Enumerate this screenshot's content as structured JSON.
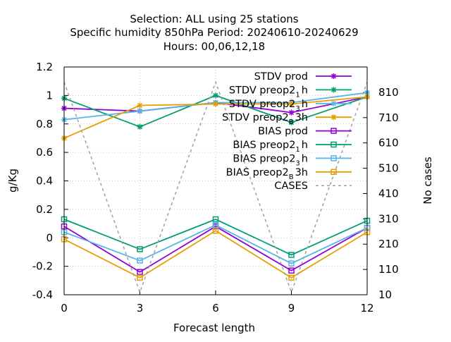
{
  "chart_data": {
    "type": "line",
    "title_lines": [
      "Selection: ALL using    25 stations",
      "Specific humidity 850hPa   Period: 20240610-20240629",
      "Hours:  00,06,12,18"
    ],
    "xlabel": "Forecast length",
    "ylabel": "g/Kg",
    "y2label": "No cases",
    "x": [
      0,
      3,
      6,
      9,
      12
    ],
    "xticks": [
      "0",
      "3",
      "6",
      "9",
      "12"
    ],
    "xlim": [
      0,
      12
    ],
    "ylim": [
      -0.4,
      1.2
    ],
    "yticks": [
      "-0.4",
      "-0.2",
      "0",
      "0.2",
      "0.4",
      "0.6",
      "0.8",
      "1",
      "1.2"
    ],
    "y2lim": [
      10,
      910
    ],
    "y2ticks": [
      "10",
      "110",
      "210",
      "310",
      "410",
      "510",
      "610",
      "710",
      "810"
    ],
    "grid": true,
    "legend_position": "top-right",
    "series": [
      {
        "name": "STDV prod",
        "name_main": "STDV prod",
        "name_sub": "",
        "name_tail": "",
        "axis": "y1",
        "color": "#9400d3",
        "marker": "star",
        "dash": false,
        "values": [
          0.91,
          0.89,
          0.95,
          0.88,
          0.99
        ]
      },
      {
        "name": "STDV preop2 1h",
        "name_main": "STDV preop2",
        "name_sub": "1",
        "name_tail": "h",
        "axis": "y1",
        "color": "#009e73",
        "marker": "star",
        "dash": false,
        "values": [
          0.98,
          0.78,
          1.0,
          0.81,
          0.99
        ]
      },
      {
        "name": "STDV preop2 3h",
        "name_main": "STDV preop2",
        "name_sub": "3",
        "name_tail": "h",
        "axis": "y1",
        "color": "#56b4e9",
        "marker": "star",
        "dash": false,
        "values": [
          0.83,
          0.89,
          0.95,
          0.95,
          1.02
        ]
      },
      {
        "name": "STDV preop2 B 3h",
        "name_main": "STDV preop2",
        "name_sub": "B",
        "name_tail": "3h",
        "axis": "y1",
        "color": "#e69f00",
        "marker": "star",
        "dash": false,
        "values": [
          0.7,
          0.93,
          0.94,
          0.94,
          0.99
        ]
      },
      {
        "name": "BIAS prod",
        "name_main": "BIAS prod",
        "name_sub": "",
        "name_tail": "",
        "axis": "y1",
        "color": "#9400d3",
        "marker": "square",
        "dash": false,
        "values": [
          0.08,
          -0.24,
          0.08,
          -0.23,
          0.07
        ]
      },
      {
        "name": "BIAS preop2 1h",
        "name_main": "BIAS preop2",
        "name_sub": "1",
        "name_tail": "h",
        "axis": "y1",
        "color": "#009e73",
        "marker": "square",
        "dash": false,
        "values": [
          0.13,
          -0.08,
          0.13,
          -0.12,
          0.12
        ]
      },
      {
        "name": "BIAS preop2 3h",
        "name_main": "BIAS preop2",
        "name_sub": "3",
        "name_tail": "h",
        "axis": "y1",
        "color": "#56b4e9",
        "marker": "square",
        "dash": false,
        "values": [
          0.04,
          -0.16,
          0.09,
          -0.18,
          0.07
        ]
      },
      {
        "name": "BIAS preop2 B 3h",
        "name_main": "BIAS preop2",
        "name_sub": "B",
        "name_tail": "3h",
        "axis": "y1",
        "color": "#e69f00",
        "marker": "square",
        "dash": false,
        "values": [
          -0.01,
          -0.28,
          0.05,
          -0.28,
          0.04
        ]
      },
      {
        "name": "CASES",
        "name_main": "CASES",
        "name_sub": "",
        "name_tail": "",
        "axis": "y2",
        "color": "#a0a0a0",
        "marker": "none",
        "dash": true,
        "values": [
          850,
          20,
          850,
          20,
          850
        ]
      }
    ]
  }
}
